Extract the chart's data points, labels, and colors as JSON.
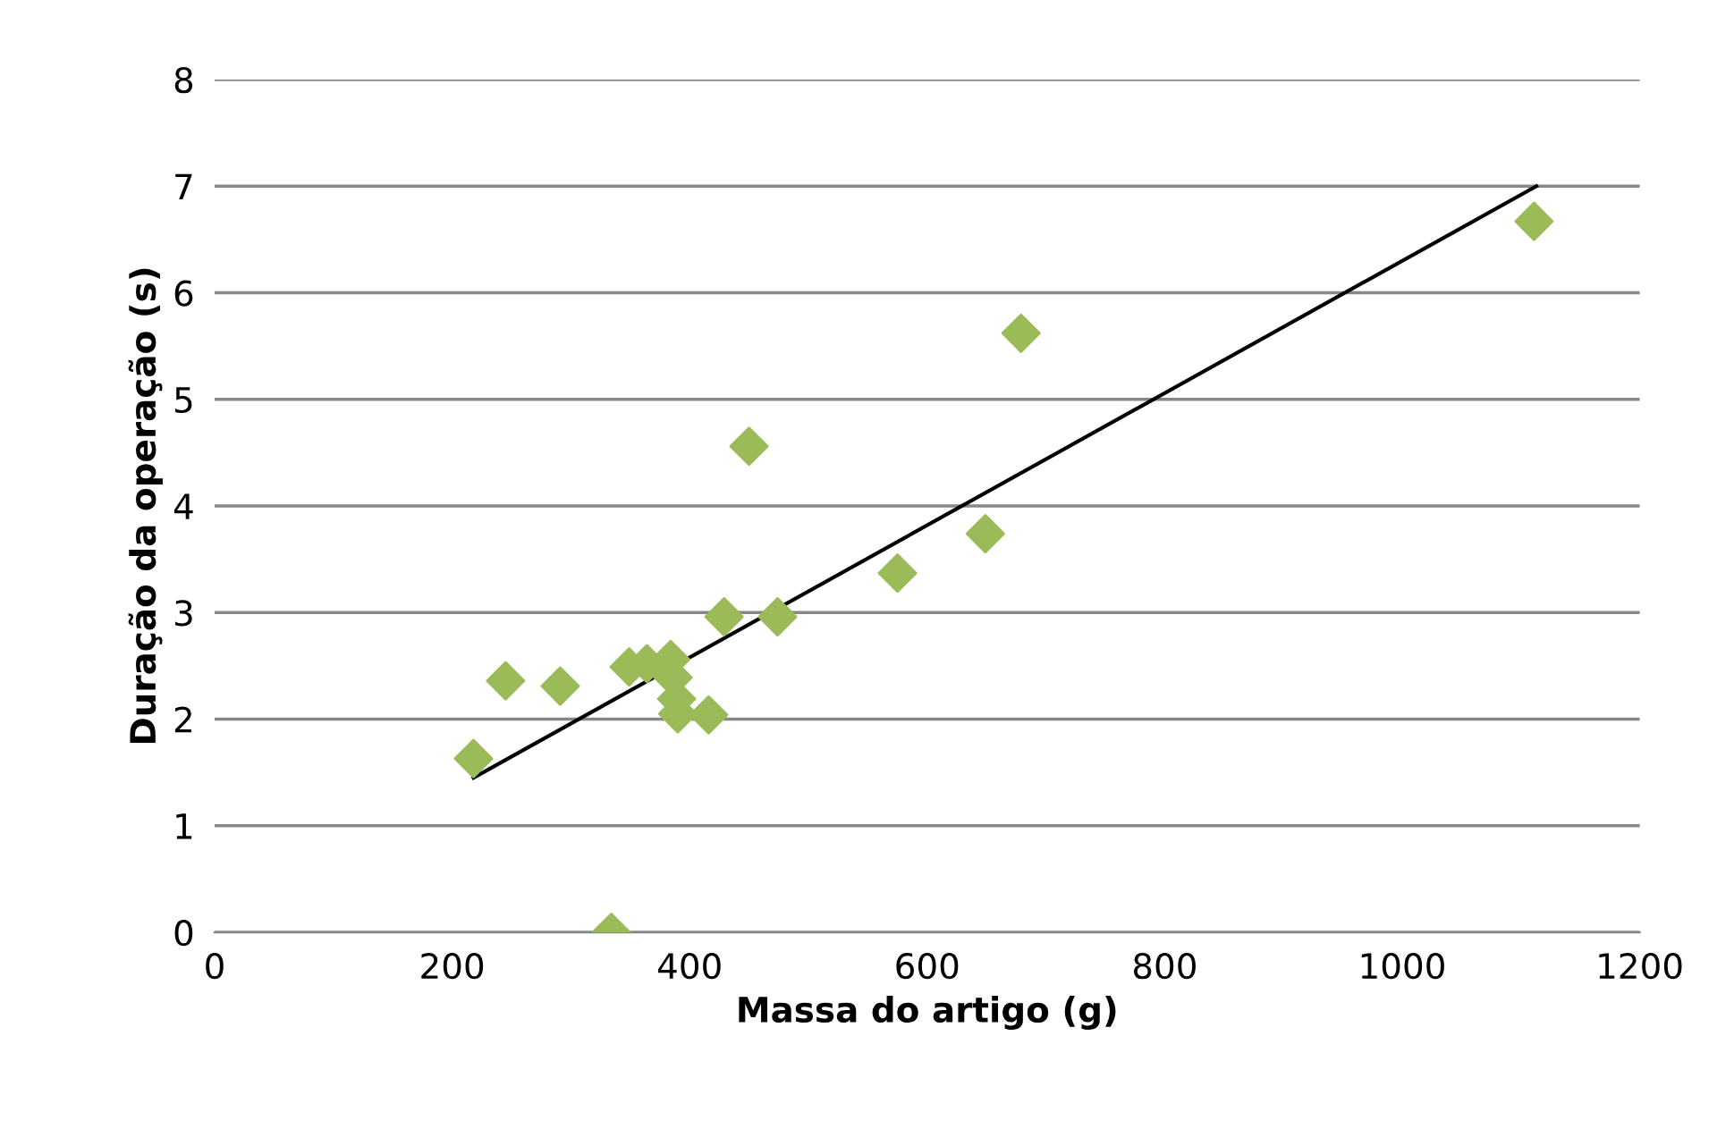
{
  "chart_data": {
    "type": "scatter",
    "xlabel": "Massa do artigo (g)",
    "ylabel": "Duração da operação (s)",
    "xlim": [
      0,
      1200
    ],
    "xticks": [
      0,
      200,
      400,
      600,
      800,
      1000,
      1200
    ],
    "ylim": [
      0,
      8
    ],
    "yticks": [
      0,
      1,
      2,
      3,
      4,
      5,
      6,
      7,
      8
    ],
    "grid": "y",
    "marker": "diamond",
    "series": [
      {
        "color": "#9bbb59",
        "x": [
          218,
          245,
          291,
          334,
          349,
          364,
          384,
          386,
          389,
          390,
          416,
          429,
          450,
          474,
          575,
          649,
          679,
          1111
        ],
        "values": [
          1.63,
          2.36,
          2.31,
          0,
          2.49,
          2.52,
          2.56,
          2.39,
          2.19,
          2.05,
          2.04,
          2.96,
          4.56,
          2.96,
          3.37,
          3.74,
          5.62,
          6.67
        ]
      },
      {
        "type": "line",
        "color": "#000000",
        "line_style": "solid",
        "marker": "none",
        "x": [
          218,
          1113
        ],
        "values": [
          1.45,
          7.0
        ]
      }
    ]
  }
}
